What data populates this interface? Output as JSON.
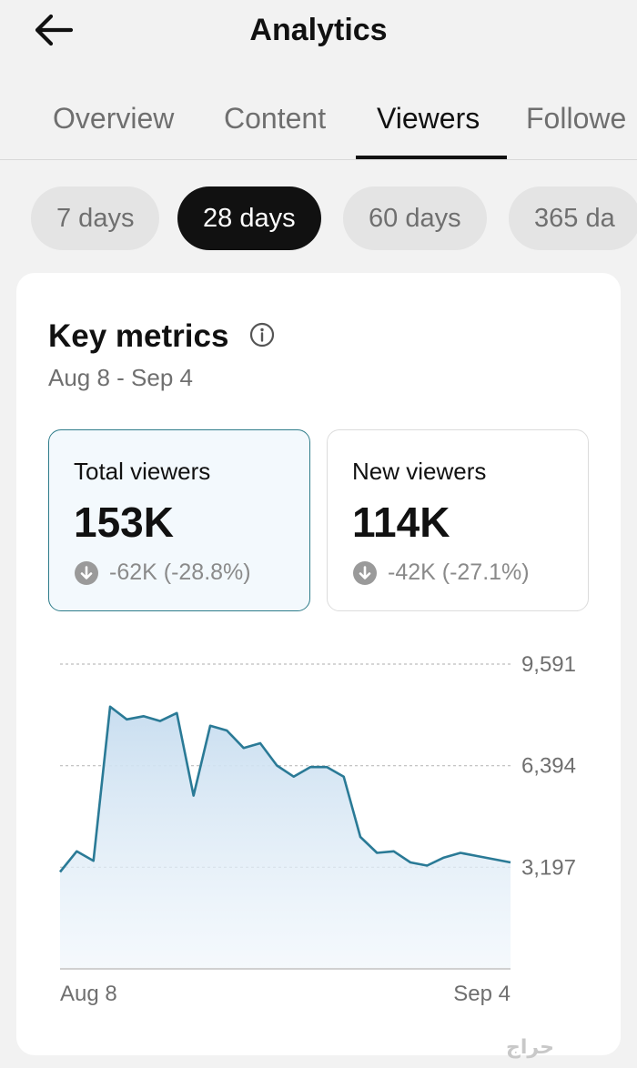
{
  "header": {
    "back_icon": "arrow-left-icon",
    "title": "Analytics"
  },
  "tabs": [
    {
      "label": "Overview",
      "active": false
    },
    {
      "label": "Content",
      "active": false
    },
    {
      "label": "Viewers",
      "active": true
    },
    {
      "label": "Followe",
      "active": false
    }
  ],
  "periods": [
    {
      "label": "7 days",
      "active": false
    },
    {
      "label": "28 days",
      "active": true
    },
    {
      "label": "60 days",
      "active": false
    },
    {
      "label": "365 da",
      "active": false
    }
  ],
  "key_metrics": {
    "title": "Key metrics",
    "info_icon": "info-circle-icon",
    "date_range": "Aug 8 - Sep 4",
    "metrics": [
      {
        "label": "Total viewers",
        "value": "153K",
        "change": "-62K (-28.8%)",
        "selected": true
      },
      {
        "label": "New viewers",
        "value": "114K",
        "change": "-42K (-27.1%)",
        "selected": false
      }
    ]
  },
  "colors": {
    "line": "#2a7a96",
    "fill": "#cfe3f3",
    "selected_border": "#2e7c8a",
    "selected_bg": "#f3f9fd",
    "active_chip": "#111111"
  },
  "chart_data": {
    "type": "area",
    "y_ticks": [
      "9,591",
      "6,394",
      "3,197"
    ],
    "y_tick_values": [
      9591,
      6394,
      3197
    ],
    "x_labels": [
      "Aug 8",
      "Sep 4"
    ],
    "ylim": [
      0,
      9591
    ],
    "grid": true,
    "x": [
      "Aug 8",
      "Aug 9",
      "Aug 10",
      "Aug 11",
      "Aug 12",
      "Aug 13",
      "Aug 14",
      "Aug 15",
      "Aug 16",
      "Aug 17",
      "Aug 18",
      "Aug 19",
      "Aug 20",
      "Aug 21",
      "Aug 22",
      "Aug 23",
      "Aug 24",
      "Aug 25",
      "Aug 26",
      "Aug 27",
      "Aug 28",
      "Aug 29",
      "Aug 30",
      "Aug 31",
      "Sep 1",
      "Sep 2",
      "Sep 3",
      "Sep 4"
    ],
    "values": [
      3050,
      3700,
      3400,
      8250,
      7850,
      7950,
      7800,
      8050,
      5450,
      7650,
      7500,
      6950,
      7100,
      6400,
      6050,
      6350,
      6350,
      6050,
      4150,
      3650,
      3700,
      3350,
      3250,
      3500,
      3650,
      3550,
      3450,
      3350
    ]
  }
}
